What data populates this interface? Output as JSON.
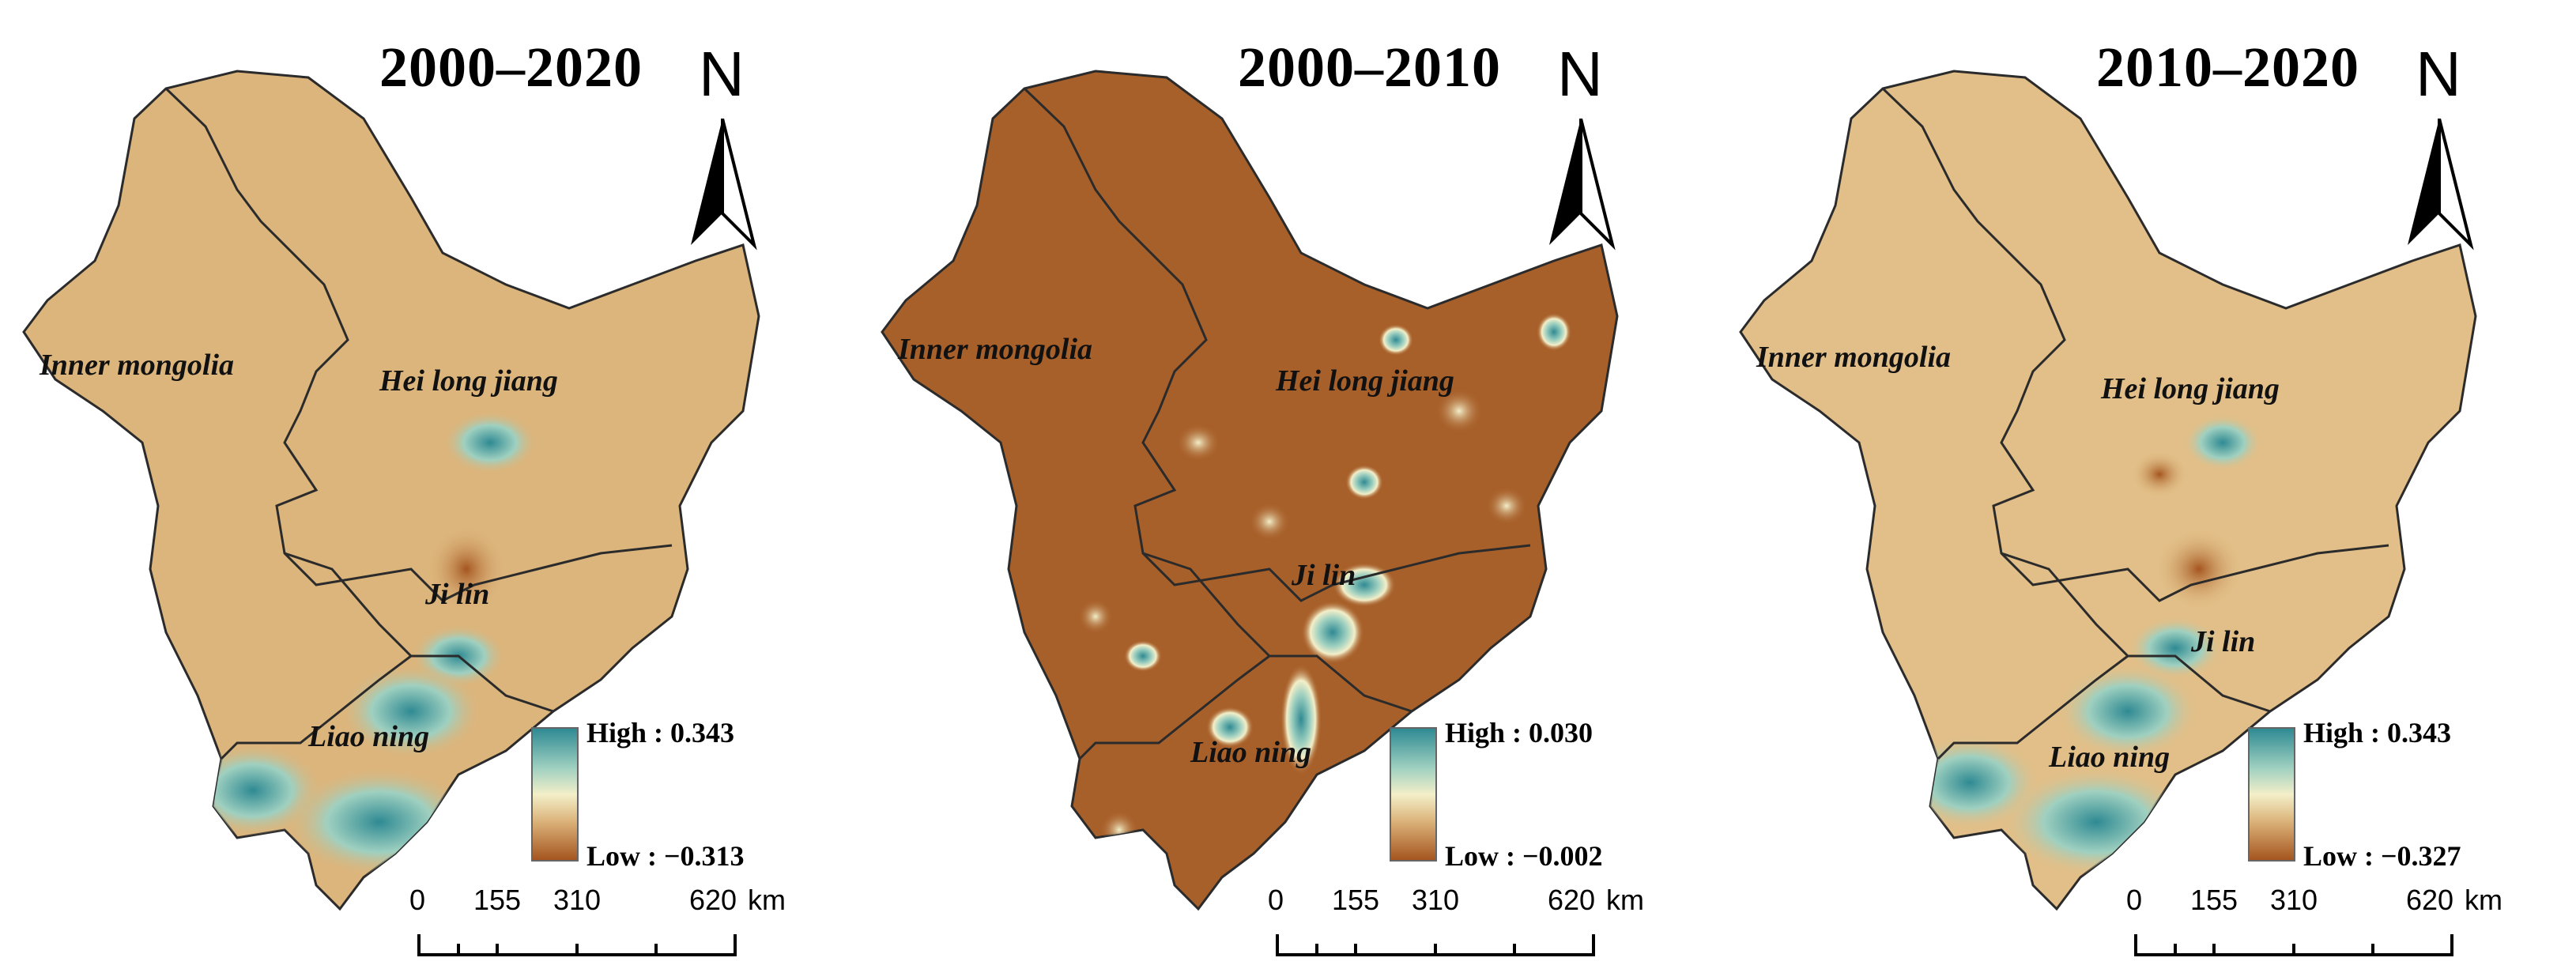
{
  "figure": {
    "panels": [
      {
        "title": "2000–2020",
        "north": "N",
        "base_color": "#dcb57c",
        "provinces": [
          "Inner mongolia",
          "Hei long jiang",
          "Ji lin",
          "Liao ning"
        ],
        "legend": {
          "high": "High : 0.343",
          "low": "Low : −0.313"
        },
        "scale": {
          "ticks": [
            "0",
            "155",
            "310",
            "620"
          ],
          "unit": "km"
        }
      },
      {
        "title": "2000–2010",
        "north": "N",
        "base_color": "#a8602a",
        "provinces": [
          "Inner mongolia",
          "Hei long jiang",
          "Ji lin",
          "Liao ning"
        ],
        "legend": {
          "high": "High : 0.030",
          "low": "Low : −0.002"
        },
        "scale": {
          "ticks": [
            "0",
            "155",
            "310",
            "620"
          ],
          "unit": "km"
        }
      },
      {
        "title": "2010–2020",
        "north": "N",
        "base_color": "#e2bf88",
        "provinces": [
          "Inner mongolia",
          "Hei long jiang",
          "Ji lin",
          "Liao ning"
        ],
        "legend": {
          "high": "High : 0.343",
          "low": "Low : −0.327"
        },
        "scale": {
          "ticks": [
            "0",
            "155",
            "310",
            "620"
          ],
          "unit": "km"
        }
      }
    ],
    "colors": {
      "high": "#2f8a93",
      "mid": "#f3efc9",
      "low": "#a5551f",
      "border": "#2b2b2b"
    }
  }
}
